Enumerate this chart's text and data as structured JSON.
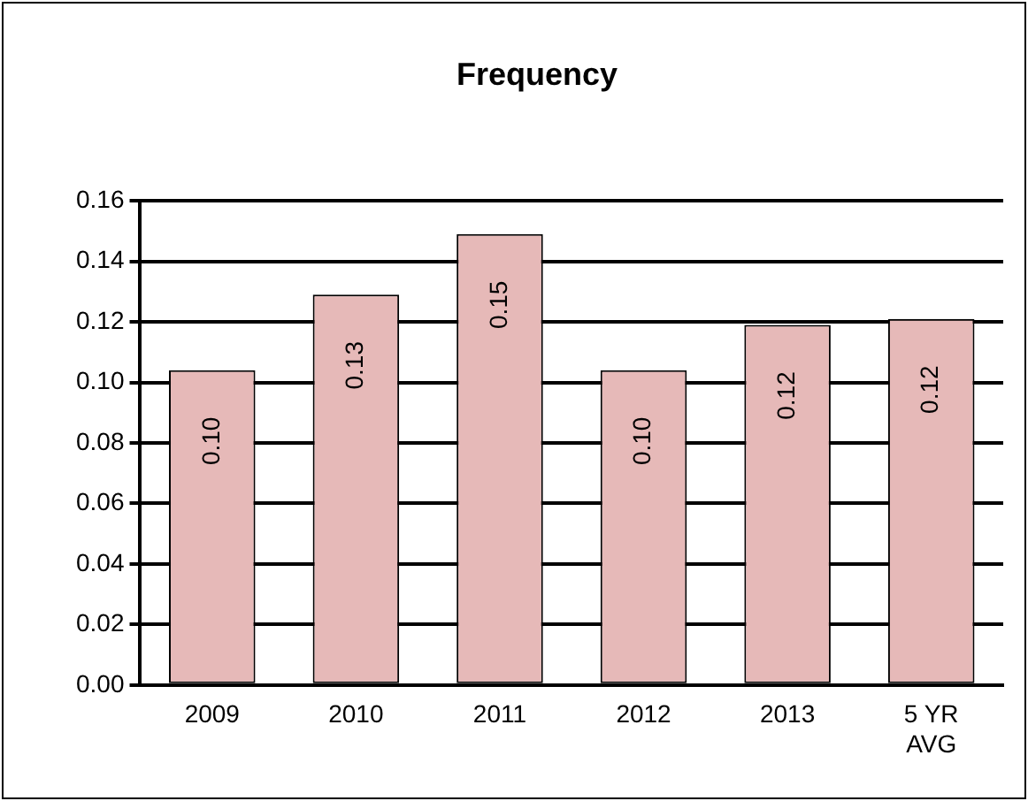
{
  "chart_data": {
    "type": "bar",
    "title": "Frequency",
    "categories": [
      "2009",
      "2010",
      "2011",
      "2012",
      "2013",
      "5 YR AVG"
    ],
    "values": [
      0.104,
      0.129,
      0.149,
      0.104,
      0.119,
      0.121
    ],
    "value_labels": [
      "0.10",
      "0.13",
      "0.15",
      "0.10",
      "0.12",
      "0.12"
    ],
    "color": "#e6b9b8",
    "ylim": [
      0,
      0.16
    ],
    "yticks": [
      {
        "value": 0,
        "label": "0.00"
      },
      {
        "value": 0.02,
        "label": "0.02"
      },
      {
        "value": 0.04,
        "label": "0.04"
      },
      {
        "value": 0.06,
        "label": "0.06"
      },
      {
        "value": 0.08,
        "label": "0.08"
      },
      {
        "value": 0.1,
        "label": "0.10"
      },
      {
        "value": 0.12,
        "label": "0.12"
      },
      {
        "value": 0.14,
        "label": "0.14"
      },
      {
        "value": 0.16,
        "label": "0.16"
      }
    ],
    "grid": "y",
    "legend": false
  }
}
